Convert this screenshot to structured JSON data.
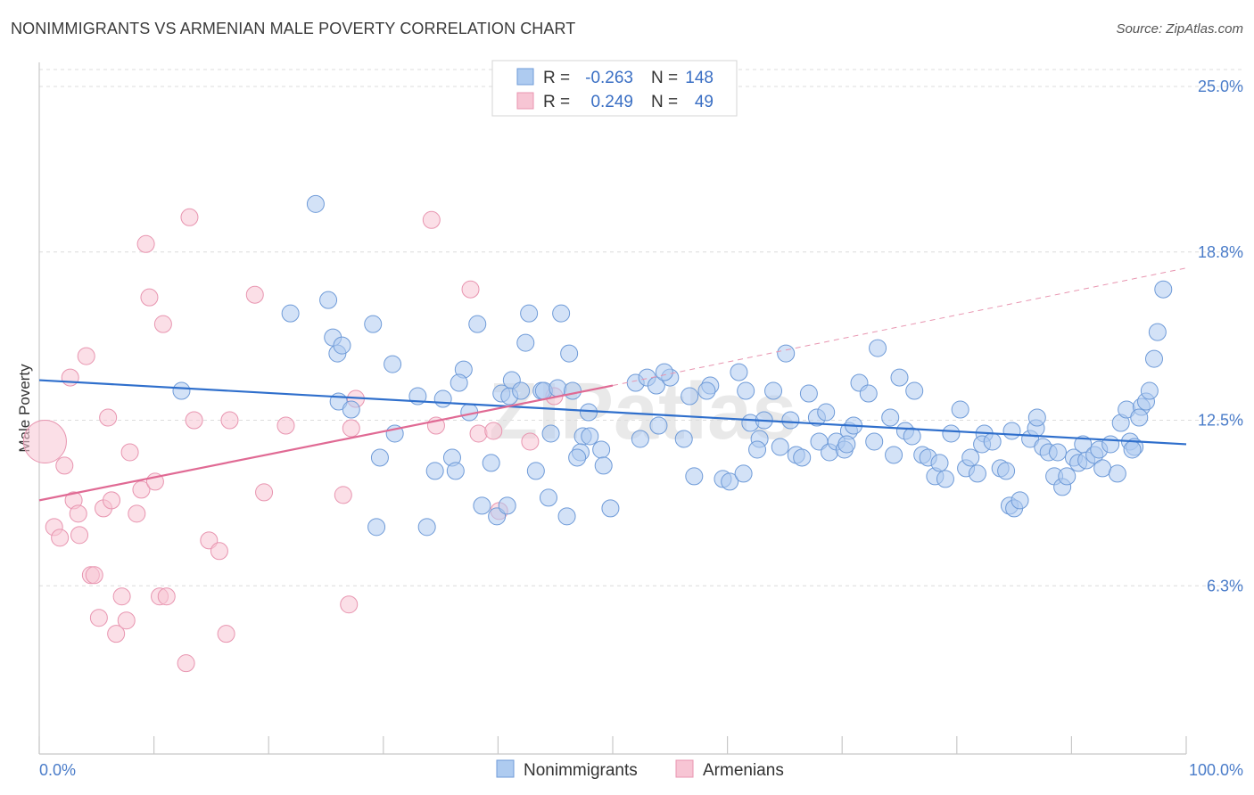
{
  "header": {
    "title": "NONIMMIGRANTS VS ARMENIAN MALE POVERTY CORRELATION CHART",
    "source": "Source: ZipAtlas.com"
  },
  "legend": {
    "rows": [
      {
        "r_label": "R =",
        "r_value": "-0.263",
        "n_label": "N =",
        "n_value": "148"
      },
      {
        "r_label": "R =",
        "r_value": "0.249",
        "n_label": "N =",
        "n_value": "49"
      }
    ]
  },
  "watermark": "ZIPatlas",
  "chart_data": {
    "type": "scatter",
    "title": "NONIMMIGRANTS VS ARMENIAN MALE POVERTY CORRELATION CHART",
    "xlabel": "",
    "ylabel": "Male Poverty",
    "xlim": [
      0,
      100
    ],
    "ylim": [
      0,
      26
    ],
    "x_tick_labels": [
      "0.0%",
      "100.0%"
    ],
    "y_ticks": [
      6.3,
      12.5,
      18.8,
      25.0
    ],
    "y_tick_labels": [
      "6.3%",
      "12.5%",
      "18.8%",
      "25.0%"
    ],
    "grid": true,
    "legend_position": "top-center",
    "colors": {
      "nonimmigrants_fill": "#aecbf0",
      "nonimmigrants_stroke": "#6f9bd8",
      "nonimmigrants_line": "#2f6fcc",
      "armenians_fill": "#f7c5d4",
      "armenians_stroke": "#e895b0",
      "armenians_line": "#e06a94"
    },
    "series": [
      {
        "name": "Nonimmigrants",
        "trend": {
          "x": [
            0,
            100
          ],
          "y": [
            14.0,
            11.6
          ]
        },
        "points": [
          [
            12.4,
            13.6
          ],
          [
            24.1,
            20.6
          ],
          [
            25.2,
            17.0
          ],
          [
            21.9,
            16.5
          ],
          [
            26.0,
            15.0
          ],
          [
            25.6,
            15.6
          ],
          [
            26.4,
            15.3
          ],
          [
            29.1,
            16.1
          ],
          [
            26.1,
            13.2
          ],
          [
            27.2,
            12.9
          ],
          [
            30.8,
            14.6
          ],
          [
            33.0,
            13.4
          ],
          [
            29.7,
            11.1
          ],
          [
            29.4,
            8.5
          ],
          [
            33.8,
            8.5
          ],
          [
            31.0,
            12.0
          ],
          [
            34.5,
            10.6
          ],
          [
            35.2,
            13.3
          ],
          [
            36.0,
            11.1
          ],
          [
            37.0,
            14.4
          ],
          [
            36.6,
            13.9
          ],
          [
            38.2,
            16.1
          ],
          [
            37.5,
            12.8
          ],
          [
            36.3,
            10.6
          ],
          [
            38.6,
            9.3
          ],
          [
            39.4,
            10.9
          ],
          [
            40.3,
            13.5
          ],
          [
            41.0,
            13.4
          ],
          [
            41.2,
            14.0
          ],
          [
            39.9,
            8.9
          ],
          [
            40.8,
            9.3
          ],
          [
            42.4,
            15.4
          ],
          [
            42.0,
            13.6
          ],
          [
            42.7,
            16.5
          ],
          [
            43.8,
            13.6
          ],
          [
            44.0,
            13.6
          ],
          [
            43.3,
            10.6
          ],
          [
            44.4,
            9.6
          ],
          [
            45.2,
            13.7
          ],
          [
            45.5,
            16.5
          ],
          [
            44.6,
            12.0
          ],
          [
            46.2,
            15.0
          ],
          [
            46.0,
            8.9
          ],
          [
            47.4,
            11.9
          ],
          [
            46.5,
            13.6
          ],
          [
            47.9,
            12.8
          ],
          [
            48.0,
            11.9
          ],
          [
            47.2,
            11.3
          ],
          [
            46.9,
            11.1
          ],
          [
            49.0,
            11.4
          ],
          [
            49.2,
            10.8
          ],
          [
            49.8,
            9.2
          ],
          [
            52.0,
            13.9
          ],
          [
            52.4,
            11.8
          ],
          [
            53.0,
            14.1
          ],
          [
            53.8,
            13.8
          ],
          [
            54.0,
            12.3
          ],
          [
            55.0,
            14.1
          ],
          [
            54.5,
            14.3
          ],
          [
            56.7,
            13.4
          ],
          [
            56.2,
            11.8
          ],
          [
            57.1,
            10.4
          ],
          [
            58.5,
            13.8
          ],
          [
            58.2,
            13.6
          ],
          [
            59.6,
            10.3
          ],
          [
            60.2,
            10.2
          ],
          [
            61.4,
            10.5
          ],
          [
            61.0,
            14.3
          ],
          [
            62.0,
            12.4
          ],
          [
            61.6,
            13.6
          ],
          [
            62.8,
            11.8
          ],
          [
            62.6,
            11.4
          ],
          [
            63.2,
            12.5
          ],
          [
            64.0,
            13.6
          ],
          [
            64.6,
            11.5
          ],
          [
            65.1,
            15.0
          ],
          [
            65.5,
            12.5
          ],
          [
            66.0,
            11.2
          ],
          [
            66.5,
            11.1
          ],
          [
            67.1,
            13.5
          ],
          [
            67.8,
            12.6
          ],
          [
            68.0,
            11.7
          ],
          [
            68.9,
            11.3
          ],
          [
            68.6,
            12.8
          ],
          [
            69.5,
            11.7
          ],
          [
            70.2,
            11.4
          ],
          [
            70.6,
            12.1
          ],
          [
            70.4,
            11.6
          ],
          [
            71.5,
            13.9
          ],
          [
            72.3,
            13.5
          ],
          [
            71.0,
            12.3
          ],
          [
            72.8,
            11.7
          ],
          [
            73.1,
            15.2
          ],
          [
            74.2,
            12.6
          ],
          [
            74.5,
            11.2
          ],
          [
            75.0,
            14.1
          ],
          [
            75.5,
            12.1
          ],
          [
            76.1,
            11.9
          ],
          [
            76.3,
            13.6
          ],
          [
            77.0,
            11.2
          ],
          [
            77.5,
            11.1
          ],
          [
            78.1,
            10.4
          ],
          [
            78.5,
            10.9
          ],
          [
            79.0,
            10.3
          ],
          [
            79.5,
            12.0
          ],
          [
            80.3,
            12.9
          ],
          [
            80.8,
            10.7
          ],
          [
            81.2,
            11.1
          ],
          [
            81.8,
            10.5
          ],
          [
            82.4,
            12.0
          ],
          [
            82.2,
            11.6
          ],
          [
            83.1,
            11.7
          ],
          [
            83.8,
            10.7
          ],
          [
            84.3,
            10.6
          ],
          [
            84.8,
            12.1
          ],
          [
            84.6,
            9.3
          ],
          [
            85.0,
            9.2
          ],
          [
            85.5,
            9.5
          ],
          [
            86.4,
            11.8
          ],
          [
            86.9,
            12.2
          ],
          [
            87.5,
            11.5
          ],
          [
            87.0,
            12.6
          ],
          [
            88.0,
            11.3
          ],
          [
            88.5,
            10.4
          ],
          [
            88.8,
            11.3
          ],
          [
            89.2,
            10.0
          ],
          [
            89.6,
            10.4
          ],
          [
            90.2,
            11.1
          ],
          [
            90.6,
            10.9
          ],
          [
            91.3,
            11.0
          ],
          [
            91.0,
            11.6
          ],
          [
            92.0,
            11.2
          ],
          [
            92.4,
            11.4
          ],
          [
            93.4,
            11.6
          ],
          [
            92.7,
            10.7
          ],
          [
            94.3,
            12.4
          ],
          [
            94.0,
            10.5
          ],
          [
            95.1,
            11.7
          ],
          [
            94.8,
            12.9
          ],
          [
            95.5,
            11.5
          ],
          [
            96.1,
            13.0
          ],
          [
            95.9,
            12.6
          ],
          [
            96.5,
            13.2
          ],
          [
            97.2,
            14.8
          ],
          [
            96.8,
            13.6
          ],
          [
            97.5,
            15.8
          ],
          [
            98.0,
            17.4
          ],
          [
            95.3,
            11.4
          ]
        ]
      },
      {
        "name": "Armenians",
        "trend": {
          "x": [
            0,
            50
          ],
          "y": [
            9.5,
            13.8
          ]
        },
        "trend_extension": {
          "x": [
            50,
            100
          ],
          "y": [
            13.8,
            18.2
          ]
        },
        "points": [
          [
            0.5,
            11.7
          ],
          [
            1.3,
            8.5
          ],
          [
            1.8,
            8.1
          ],
          [
            2.2,
            10.8
          ],
          [
            2.7,
            14.1
          ],
          [
            3.0,
            9.5
          ],
          [
            3.4,
            9.0
          ],
          [
            3.5,
            8.2
          ],
          [
            4.1,
            14.9
          ],
          [
            4.5,
            6.7
          ],
          [
            4.8,
            6.7
          ],
          [
            5.2,
            5.1
          ],
          [
            5.6,
            9.2
          ],
          [
            6.0,
            12.6
          ],
          [
            6.3,
            9.5
          ],
          [
            6.7,
            4.5
          ],
          [
            7.2,
            5.9
          ],
          [
            7.6,
            5.0
          ],
          [
            7.9,
            11.3
          ],
          [
            8.5,
            9.0
          ],
          [
            8.9,
            9.9
          ],
          [
            9.3,
            19.1
          ],
          [
            9.6,
            17.1
          ],
          [
            10.1,
            10.2
          ],
          [
            10.5,
            5.9
          ],
          [
            10.8,
            16.1
          ],
          [
            11.1,
            5.9
          ],
          [
            12.8,
            3.4
          ],
          [
            13.1,
            20.1
          ],
          [
            13.5,
            12.5
          ],
          [
            14.8,
            8.0
          ],
          [
            15.7,
            7.6
          ],
          [
            16.3,
            4.5
          ],
          [
            16.6,
            12.5
          ],
          [
            18.8,
            17.2
          ],
          [
            19.6,
            9.8
          ],
          [
            26.5,
            9.7
          ],
          [
            27.2,
            12.2
          ],
          [
            27.0,
            5.6
          ],
          [
            27.6,
            13.3
          ],
          [
            34.2,
            20.0
          ],
          [
            34.6,
            12.3
          ],
          [
            37.6,
            17.4
          ],
          [
            38.3,
            12.0
          ],
          [
            39.6,
            12.1
          ],
          [
            40.1,
            9.1
          ],
          [
            42.8,
            11.7
          ],
          [
            44.9,
            13.4
          ],
          [
            21.5,
            12.3
          ]
        ]
      }
    ]
  },
  "bottom_legend": {
    "items": [
      "Nonimmigrants",
      "Armenians"
    ]
  }
}
